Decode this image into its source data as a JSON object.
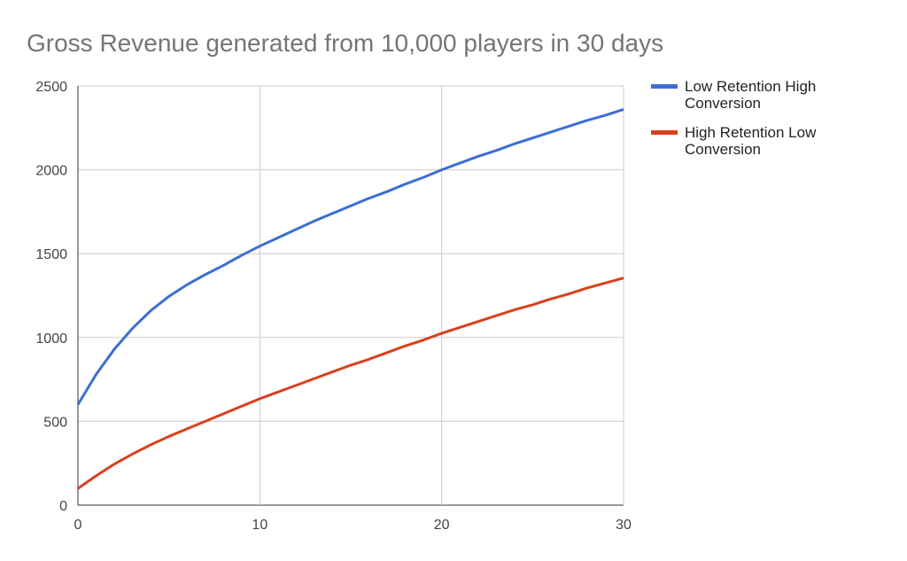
{
  "chart_data": {
    "type": "line",
    "title": "Gross Revenue generated from 10,000 players in 30 days",
    "x": [
      0,
      1,
      2,
      3,
      4,
      5,
      6,
      7,
      8,
      9,
      10,
      11,
      12,
      13,
      14,
      15,
      16,
      17,
      18,
      19,
      20,
      21,
      22,
      23,
      24,
      25,
      26,
      27,
      28,
      29,
      30
    ],
    "series": [
      {
        "name": "Low Retention High Conversion",
        "color": "#3c6fd3",
        "values": [
          600,
          780,
          930,
          1055,
          1160,
          1245,
          1315,
          1375,
          1430,
          1490,
          1545,
          1595,
          1645,
          1695,
          1740,
          1785,
          1830,
          1870,
          1915,
          1955,
          2000,
          2040,
          2080,
          2115,
          2155,
          2190,
          2225,
          2260,
          2295,
          2325,
          2360
        ]
      },
      {
        "name": "High Retention Low Conversion",
        "color": "#d9401e",
        "values": [
          100,
          175,
          245,
          305,
          360,
          410,
          455,
          500,
          545,
          590,
          635,
          675,
          715,
          755,
          795,
          835,
          870,
          910,
          950,
          985,
          1025,
          1060,
          1095,
          1130,
          1165,
          1195,
          1230,
          1260,
          1295,
          1325,
          1355
        ]
      }
    ],
    "xlim": [
      0,
      30
    ],
    "xticks": [
      0,
      10,
      20,
      30
    ],
    "ylim": [
      0,
      2500
    ],
    "yticks": [
      0,
      500,
      1000,
      1500,
      2000,
      2500
    ],
    "grid": true
  }
}
